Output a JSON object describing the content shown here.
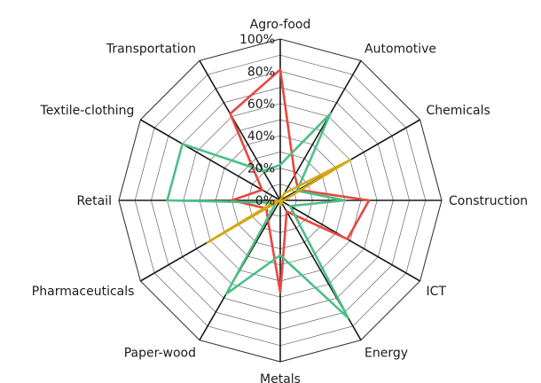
{
  "chart_data": {
    "type": "radar",
    "title": "",
    "categories": [
      "Agro-food",
      "Automotive",
      "Chemicals",
      "Construction",
      "ICT",
      "Energy",
      "Metals",
      "Paper-wood",
      "Pharmaceuticals",
      "Retail",
      "Textile-clothing",
      "Transportation"
    ],
    "ticks": [
      "0%",
      "20%",
      "40%",
      "60%",
      "80%",
      "100%"
    ],
    "rlim": [
      0,
      100
    ],
    "grid": true,
    "legend": "none",
    "series": [
      {
        "color": "#e8473f",
        "values": [
          81,
          18,
          13,
          55,
          48,
          8,
          57,
          15,
          10,
          30,
          13,
          62
        ]
      },
      {
        "color": "#4cbf86",
        "values": [
          22,
          62,
          12,
          40,
          7,
          84,
          34,
          67,
          3,
          70,
          70,
          21
        ]
      },
      {
        "color": "#d4a814",
        "values": [
          0,
          5,
          50,
          2,
          1,
          2,
          3,
          0,
          52,
          2,
          0,
          0
        ]
      }
    ]
  }
}
